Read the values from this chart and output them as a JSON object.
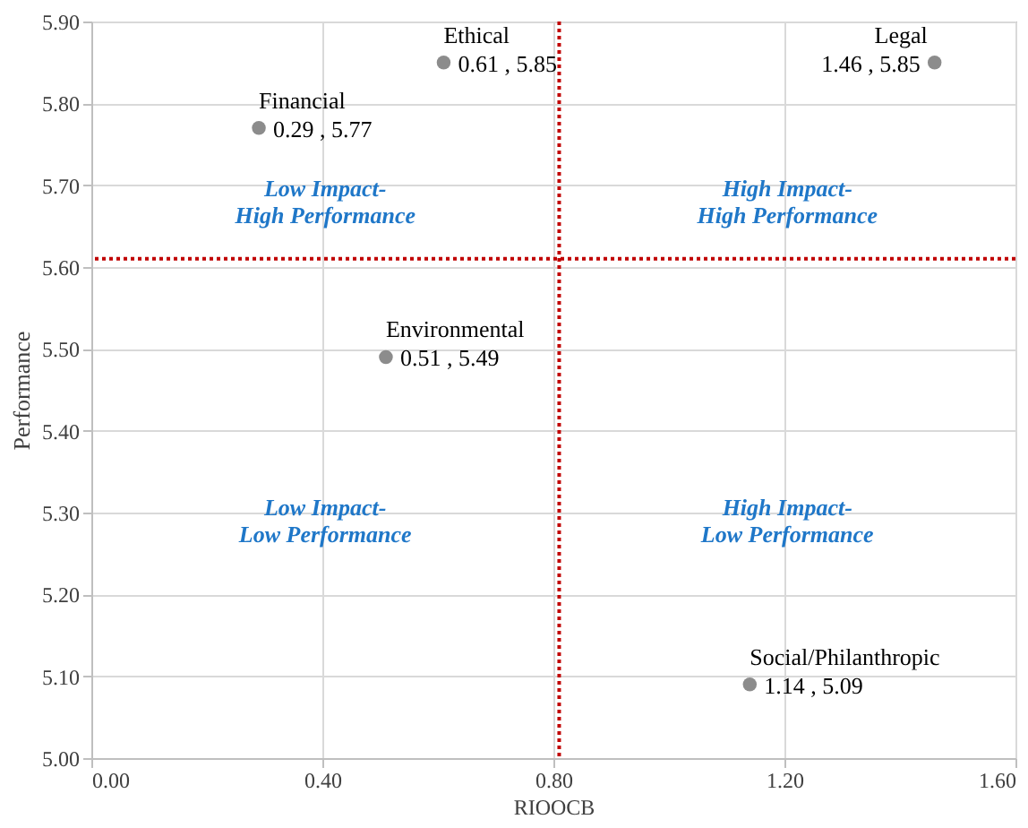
{
  "chart_data": {
    "type": "scatter",
    "xlabel": "RIOOCB",
    "ylabel": "Performance",
    "series": [
      {
        "name": "Financial",
        "color": "#8c8c8c",
        "x": [
          0.29
        ],
        "values": [
          5.77
        ],
        "value_labels": [
          "0.29 , 5.77"
        ]
      },
      {
        "name": "Ethical",
        "color": "#8c8c8c",
        "x": [
          0.61
        ],
        "values": [
          5.85
        ],
        "value_labels": [
          "0.61 , 5.85"
        ]
      },
      {
        "name": "Legal",
        "color": "#8c8c8c",
        "x": [
          1.46
        ],
        "values": [
          5.85
        ],
        "value_labels": [
          "1.46 , 5.85"
        ]
      },
      {
        "name": "Environmental",
        "color": "#8c8c8c",
        "x": [
          0.51
        ],
        "values": [
          5.49
        ],
        "value_labels": [
          "0.51 , 5.49"
        ]
      },
      {
        "name": "Social/Philanthropic",
        "color": "#8c8c8c",
        "x": [
          1.14
        ],
        "values": [
          5.09
        ],
        "value_labels": [
          "1.14 , 5.09"
        ]
      }
    ],
    "xlim": [
      0,
      1.6
    ],
    "xticks": [
      {
        "value": 0,
        "label": "0.00"
      },
      {
        "value": 0.4,
        "label": "0.40"
      },
      {
        "value": 0.8,
        "label": "0.80"
      },
      {
        "value": 1.2,
        "label": "1.20"
      },
      {
        "value": 1.6,
        "label": "1.60"
      }
    ],
    "ylim": [
      5.0,
      5.9
    ],
    "yticks": [
      {
        "value": 5.0,
        "label": "5.00"
      },
      {
        "value": 5.1,
        "label": "5.10"
      },
      {
        "value": 5.2,
        "label": "5.20"
      },
      {
        "value": 5.3,
        "label": "5.30"
      },
      {
        "value": 5.4,
        "label": "5.40"
      },
      {
        "value": 5.5,
        "label": "5.50"
      },
      {
        "value": 5.6,
        "label": "5.60"
      },
      {
        "value": 5.7,
        "label": "5.70"
      },
      {
        "value": 5.8,
        "label": "5.80"
      },
      {
        "value": 5.9,
        "label": "5.90"
      }
    ],
    "ref_lines": [
      {
        "axis": "x",
        "value": 0.81,
        "color": "#c00000",
        "line_style": "dotted"
      },
      {
        "axis": "y",
        "value": 5.61,
        "color": "#c00000",
        "line_style": "dotted"
      }
    ],
    "annotations": [
      "Low Impact-\nHigh Performance",
      "High Impact-\nHigh Performance",
      "Low Impact-\nLow Performance",
      "High Impact-\nLow Performance"
    ],
    "grid": true,
    "marker": "circle",
    "data_labels": true
  }
}
